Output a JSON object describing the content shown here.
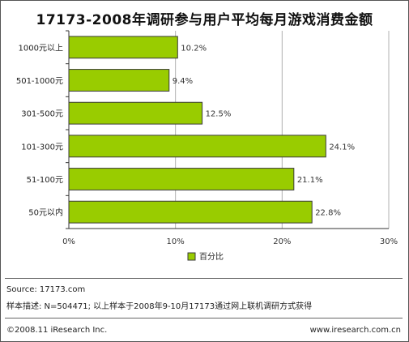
{
  "chart_data": {
    "type": "bar",
    "orientation": "horizontal",
    "title": "17173-2008年调研参与用户平均每月游戏消费金额",
    "categories": [
      "1000元以上",
      "501-1000元",
      "301-500元",
      "101-300元",
      "51-100元",
      "50元以内"
    ],
    "series": [
      {
        "name": "百分比",
        "values": [
          10.2,
          9.4,
          12.5,
          24.1,
          21.1,
          22.8
        ],
        "labels": [
          "10.2%",
          "9.4%",
          "12.5%",
          "24.1%",
          "21.1%",
          "22.8%"
        ]
      }
    ],
    "xlim": [
      0,
      30
    ],
    "xticks": [
      "0%",
      "10%",
      "20%",
      "30%"
    ],
    "grid": true,
    "legend_position": "bottom",
    "bar_color": "#99cc00",
    "bar_border_color": "#3a3a3a"
  },
  "footer": {
    "source": "Source:  17173.com",
    "sample": "样本描述:  N=504471;  以上样本于2008年9-10月17173通过网上联机调研方式获得",
    "copyright": "©2008.11 iResearch Inc.",
    "website": "www.iresearch.com.cn"
  }
}
